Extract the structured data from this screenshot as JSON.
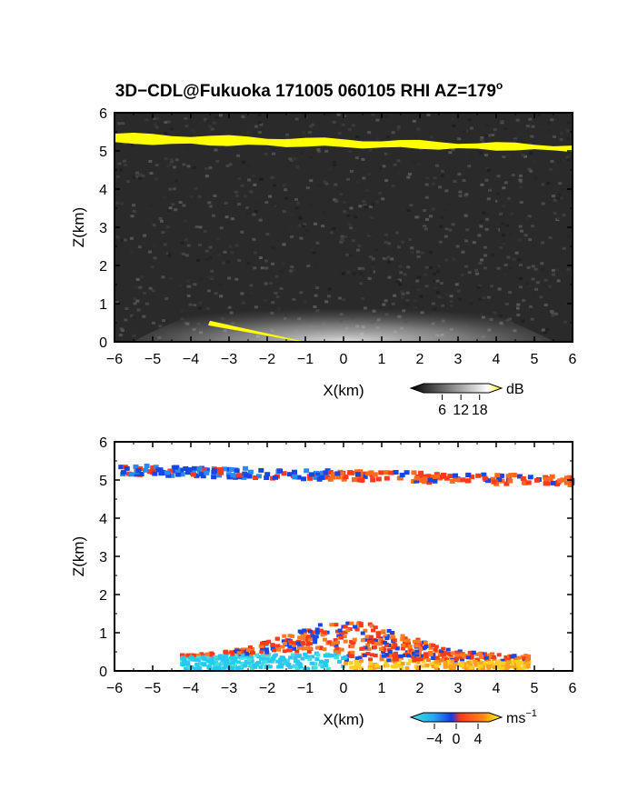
{
  "figure": {
    "title": "3D−CDL@Fukuoka 171005 060105 RHI AZ=179",
    "title_degree": "o"
  },
  "chart_data": [
    {
      "type": "heatmap",
      "name": "reflectivity",
      "xlabel": "X(km)",
      "ylabel": "Z(km)",
      "xlim": [
        -6,
        6
      ],
      "ylim": [
        0,
        6
      ],
      "xticks": [
        "−6",
        "−5",
        "−4",
        "−3",
        "−2",
        "−1",
        "0",
        "1",
        "2",
        "3",
        "4",
        "5",
        "6"
      ],
      "yticks": [
        "0",
        "1",
        "2",
        "3",
        "4",
        "5",
        "6"
      ],
      "colorbar": {
        "unit": "dB",
        "ticks": [
          "6",
          "12",
          "18"
        ],
        "tick_values": [
          6,
          12,
          18
        ],
        "range": [
          0,
          21
        ]
      },
      "layers": [
        {
          "label": "cloud layer",
          "x": [
            -6,
            6
          ],
          "z_top": [
            5.45,
            5.15
          ],
          "z_bottom": [
            5.2,
            5.0
          ],
          "value_db": 20
        },
        {
          "label": "near-surface echo",
          "x": [
            -3.5,
            -1.0
          ],
          "z_top": [
            0.55,
            0.0
          ],
          "value_db": 20
        }
      ]
    },
    {
      "type": "heatmap",
      "name": "doppler velocity",
      "xlabel": "X(km)",
      "ylabel": "Z(km)",
      "xlim": [
        -6,
        6
      ],
      "ylim": [
        0,
        6
      ],
      "xticks": [
        "−6",
        "−5",
        "−4",
        "−3",
        "−2",
        "−1",
        "0",
        "1",
        "2",
        "3",
        "4",
        "5",
        "6"
      ],
      "yticks": [
        "0",
        "1",
        "2",
        "3",
        "4",
        "5",
        "6"
      ],
      "colorbar": {
        "unit": "ms",
        "unit_exp": "−1",
        "ticks": [
          "−4",
          "0",
          "4"
        ],
        "tick_values": [
          -4,
          0,
          4
        ],
        "range": [
          -6,
          6
        ]
      },
      "layers": [
        {
          "label": "cloud layer west",
          "x": [
            -6,
            -0.5
          ],
          "z": [
            5.2,
            5.55
          ],
          "velocity_ms": -3.5
        },
        {
          "label": "cloud layer east",
          "x": [
            -0.5,
            6
          ],
          "z": [
            5.0,
            5.45
          ],
          "velocity_ms": 2.5
        },
        {
          "label": "boundary layer",
          "x": [
            -4.3,
            4.8
          ],
          "z": [
            0.0,
            1.25
          ],
          "velocity_ms": 2.0
        }
      ]
    }
  ],
  "colors": {
    "yellow": "#ffff00",
    "dark_bg": "#2a2a2a",
    "blue": "#1446e8",
    "cyan": "#28c8f0",
    "red": "#ff3a1a",
    "orange": "#ff8a1a"
  }
}
